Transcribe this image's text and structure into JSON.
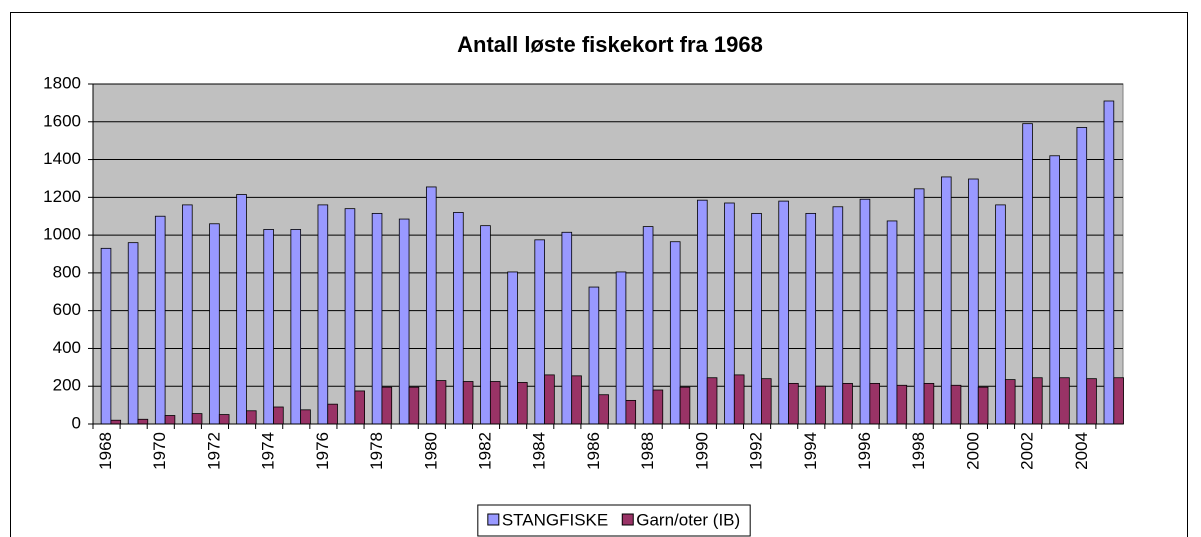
{
  "chart_data": {
    "type": "bar",
    "title": "Antall løste fiskekort fra 1968",
    "categories": [
      "1968",
      null,
      "1970",
      null,
      "1972",
      null,
      "1974",
      null,
      "1976",
      null,
      "1978",
      null,
      "1980",
      null,
      "1982",
      null,
      "1984",
      null,
      "1986",
      null,
      "1988",
      null,
      "1990",
      null,
      "1992",
      null,
      "1994",
      null,
      "1996",
      null,
      "1998",
      null,
      "2000",
      null,
      "2002",
      null,
      "2004",
      null
    ],
    "series": [
      {
        "name": "STANGFISKE",
        "color": "#9999ff",
        "values": [
          930,
          960,
          1100,
          1160,
          1060,
          1215,
          1030,
          1030,
          1160,
          1140,
          1115,
          1085,
          1255,
          1120,
          1050,
          805,
          975,
          1015,
          725,
          805,
          1045,
          965,
          1185,
          1170,
          1115,
          1180,
          1115,
          1150,
          1190,
          1075,
          1245,
          1308,
          1297,
          1160,
          1590,
          1420,
          1570,
          1710
        ]
      },
      {
        "name": "Garn/oter (IB)",
        "color": "#993366",
        "values": [
          20,
          25,
          45,
          55,
          50,
          70,
          90,
          75,
          105,
          175,
          195,
          195,
          230,
          225,
          225,
          220,
          260,
          255,
          155,
          125,
          180,
          195,
          245,
          260,
          240,
          215,
          200,
          215,
          215,
          205,
          215,
          205,
          195,
          235,
          245,
          245,
          240,
          245
        ]
      }
    ],
    "ylim": [
      0,
      1800
    ],
    "yticks": [
      0,
      200,
      400,
      600,
      800,
      1000,
      1200,
      1400,
      1600,
      1800
    ],
    "grid": true,
    "plot_background": "#c0c0c0",
    "legend": "bottom"
  }
}
